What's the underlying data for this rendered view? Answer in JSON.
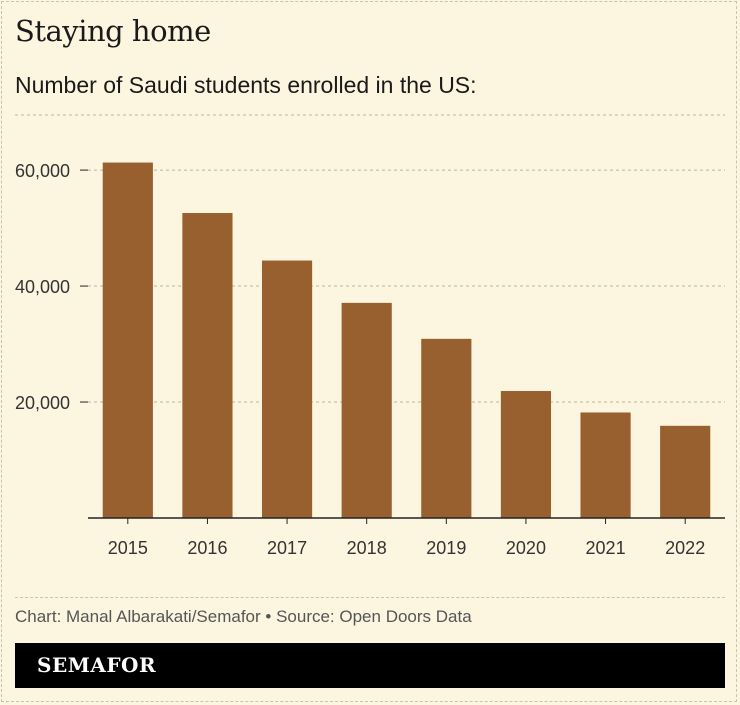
{
  "header": {
    "title": "Staying home",
    "subtitle": "Number of Saudi students enrolled in the US:"
  },
  "footer": {
    "credit": "Chart: Manal Albarakati/Semafor • Source: Open Doors Data",
    "brand": "SEMAFOR"
  },
  "colors": {
    "bar": "#98602e",
    "grid": "#b9b39f",
    "axis": "#222222",
    "background": "#fcf6e1"
  },
  "chart_data": {
    "type": "bar",
    "title": "Number of Saudi students enrolled in the US:",
    "categories": [
      "2015",
      "2016",
      "2017",
      "2018",
      "2019",
      "2020",
      "2021",
      "2022"
    ],
    "values": [
      61300,
      52600,
      44400,
      37100,
      30900,
      21900,
      18200,
      15900
    ],
    "y_ticks": [
      20000,
      40000,
      60000
    ],
    "y_tick_labels": [
      "20,000",
      "40,000",
      "60,000"
    ],
    "ylim": [
      0,
      69500
    ],
    "grid": true,
    "legend": "none"
  }
}
